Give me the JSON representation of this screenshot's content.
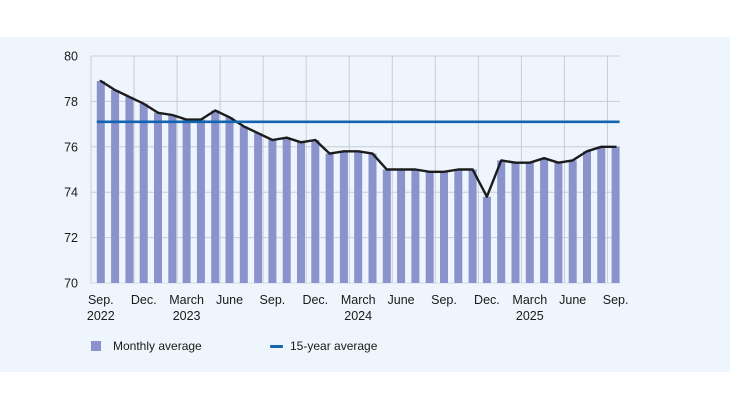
{
  "colors": {
    "panel_bg": "#eef5fc",
    "bar": "#8a93cb",
    "trend_line": "#1c1c1c",
    "average_line": "#1465af",
    "grid": "#c9ced6",
    "baseline_grid": "#d6dbe2",
    "text": "#1a1a1a"
  },
  "legend": {
    "monthly_label": "Monthly average",
    "average_label": "15-year average"
  },
  "chart_data": {
    "type": "bar",
    "title": "",
    "xlabel": "",
    "ylabel": "",
    "ylim": [
      70,
      80
    ],
    "yticks": [
      "80",
      "78",
      "76",
      "74",
      "72",
      "70"
    ],
    "ytick_values": [
      80,
      78,
      76,
      74,
      72,
      70
    ],
    "grid": true,
    "legend_position": "bottom",
    "categories": [
      "Sep. 2022",
      "Oct. 2022",
      "Nov. 2022",
      "Dec. 2022",
      "Jan. 2023",
      "Feb. 2023",
      "March 2023",
      "April 2023",
      "May 2023",
      "June 2023",
      "July 2023",
      "Aug. 2023",
      "Sep. 2023",
      "Oct. 2023",
      "Nov. 2023",
      "Dec. 2023",
      "Jan. 2024",
      "Feb. 2024",
      "March 2024",
      "April 2024",
      "May 2024",
      "June 2024",
      "July 2024",
      "Aug. 2024",
      "Sep. 2024",
      "Oct. 2024",
      "Nov. 2024",
      "Dec. 2024",
      "Jan. 2025",
      "Feb. 2025",
      "March 2025",
      "April 2025",
      "May 2025",
      "June 2025",
      "July 2025",
      "Aug. 2025",
      "Sep. 2025"
    ],
    "series": [
      {
        "name": "Monthly average",
        "type": "bar",
        "values": [
          78.9,
          78.5,
          78.2,
          77.9,
          77.5,
          77.4,
          77.2,
          77.2,
          77.6,
          77.3,
          76.9,
          76.6,
          76.3,
          76.4,
          76.2,
          76.3,
          75.7,
          75.8,
          75.8,
          75.7,
          75.0,
          75.0,
          75.0,
          74.9,
          74.9,
          75.0,
          75.0,
          73.8,
          75.4,
          75.3,
          75.3,
          75.5,
          75.3,
          75.4,
          75.8,
          76.0,
          76.0
        ]
      },
      {
        "name": "15-year average",
        "type": "line",
        "value": 77.1
      }
    ],
    "x_tick_labels": [
      {
        "month": "Sep.",
        "year": "2022"
      },
      {
        "month": "Dec.",
        "year": ""
      },
      {
        "month": "March",
        "year": "2023"
      },
      {
        "month": "June",
        "year": ""
      },
      {
        "month": "Sep.",
        "year": ""
      },
      {
        "month": "Dec.",
        "year": ""
      },
      {
        "month": "March",
        "year": "2024"
      },
      {
        "month": "June",
        "year": ""
      },
      {
        "month": "Sep.",
        "year": ""
      },
      {
        "month": "Dec.",
        "year": ""
      },
      {
        "month": "March",
        "year": "2025"
      },
      {
        "month": "June",
        "year": ""
      },
      {
        "month": "Sep.",
        "year": ""
      }
    ]
  }
}
